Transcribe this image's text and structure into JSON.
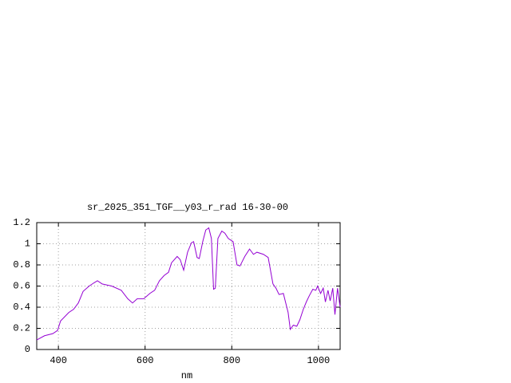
{
  "chart_data": {
    "type": "line",
    "title": "sr_2025_351_TGF__y03_r_rad 16-30-00",
    "xlabel": "nm",
    "x": [
      350,
      368,
      387,
      398,
      405,
      424,
      435,
      446,
      457,
      471,
      482,
      490,
      501,
      523,
      545,
      560,
      571,
      582,
      597,
      611,
      622,
      633,
      644,
      654,
      661,
      674,
      681,
      689,
      698,
      707,
      712,
      720,
      725,
      733,
      740,
      747,
      753,
      758,
      762,
      768,
      777,
      784,
      792,
      803,
      812,
      819,
      830,
      841,
      850,
      858,
      873,
      884,
      895,
      902,
      909,
      919,
      930,
      935,
      942,
      950,
      957,
      965,
      972,
      979,
      987,
      994,
      998,
      1005,
      1011,
      1016,
      1022,
      1027,
      1033,
      1038,
      1044,
      1050
    ],
    "series": [
      {
        "color": "#9400d3",
        "values": [
          0.09,
          0.13,
          0.15,
          0.18,
          0.27,
          0.35,
          0.38,
          0.44,
          0.55,
          0.6,
          0.63,
          0.65,
          0.62,
          0.6,
          0.56,
          0.48,
          0.44,
          0.48,
          0.48,
          0.53,
          0.56,
          0.65,
          0.7,
          0.73,
          0.82,
          0.88,
          0.85,
          0.75,
          0.92,
          1.01,
          1.02,
          0.87,
          0.86,
          1.02,
          1.13,
          1.15,
          1.05,
          0.57,
          0.58,
          1.05,
          1.12,
          1.1,
          1.05,
          1.02,
          0.8,
          0.79,
          0.88,
          0.95,
          0.9,
          0.92,
          0.9,
          0.87,
          0.62,
          0.58,
          0.52,
          0.53,
          0.35,
          0.19,
          0.23,
          0.22,
          0.28,
          0.38,
          0.45,
          0.51,
          0.57,
          0.56,
          0.6,
          0.53,
          0.58,
          0.45,
          0.56,
          0.46,
          0.58,
          0.33,
          0.58,
          0.4
        ]
      }
    ],
    "xlim": [
      350,
      1050
    ],
    "xticks": [
      400,
      600,
      800,
      1000
    ],
    "ylim": [
      0,
      1.2
    ],
    "yticks": [
      0,
      0.2,
      0.4,
      0.6,
      0.8,
      1,
      1.2
    ],
    "grid": true
  }
}
